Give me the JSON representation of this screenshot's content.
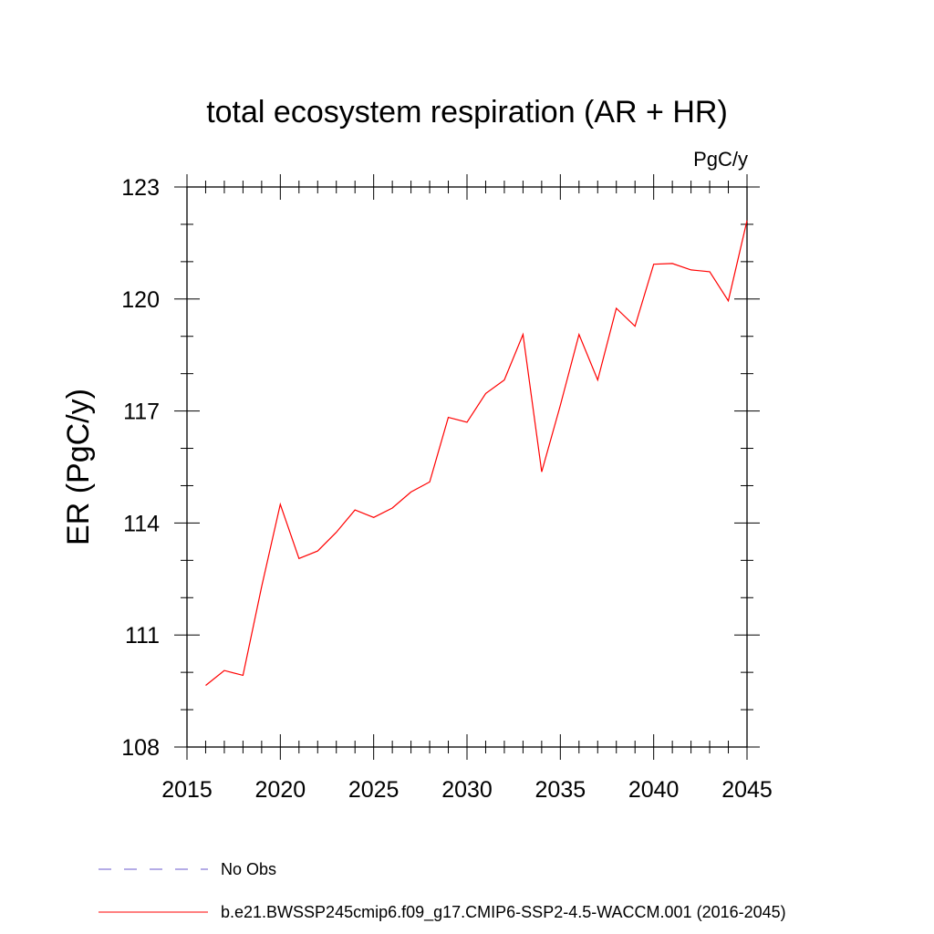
{
  "chart_data": {
    "type": "line",
    "title": "total ecosystem respiration (AR + HR)",
    "units": "PgC/y",
    "ylabel": "ER  (PgC/y)",
    "xlabel": "",
    "xlim": [
      2015,
      2045
    ],
    "ylim": [
      108,
      123
    ],
    "x_ticks": [
      2015,
      2020,
      2025,
      2030,
      2035,
      2040,
      2045
    ],
    "y_ticks": [
      108,
      111,
      114,
      117,
      120,
      123
    ],
    "grid": false,
    "legend_position": "bottom",
    "series": [
      {
        "name": "No Obs",
        "color": "#6a5acd",
        "dash": "dashed",
        "x": [],
        "values": []
      },
      {
        "name": "b.e21.BWSSP245cmip6.f09_g17.CMIP6-SSP2-4.5-WACCM.001 (2016-2045)",
        "color": "#ff0000",
        "dash": "solid",
        "x": [
          2016,
          2017,
          2018,
          2019,
          2020,
          2021,
          2022,
          2023,
          2024,
          2025,
          2026,
          2027,
          2028,
          2029,
          2030,
          2031,
          2032,
          2033,
          2034,
          2035,
          2036,
          2037,
          2038,
          2039,
          2040,
          2041,
          2042,
          2043,
          2044,
          2045
        ],
        "values": [
          109.65,
          110.05,
          109.92,
          112.3,
          114.5,
          113.05,
          113.25,
          113.75,
          114.35,
          114.15,
          114.4,
          114.83,
          115.1,
          116.83,
          116.7,
          117.47,
          117.83,
          119.05,
          115.37,
          117.15,
          119.05,
          117.83,
          119.75,
          119.27,
          120.93,
          120.95,
          120.78,
          120.73,
          119.95,
          122.1
        ]
      }
    ]
  }
}
